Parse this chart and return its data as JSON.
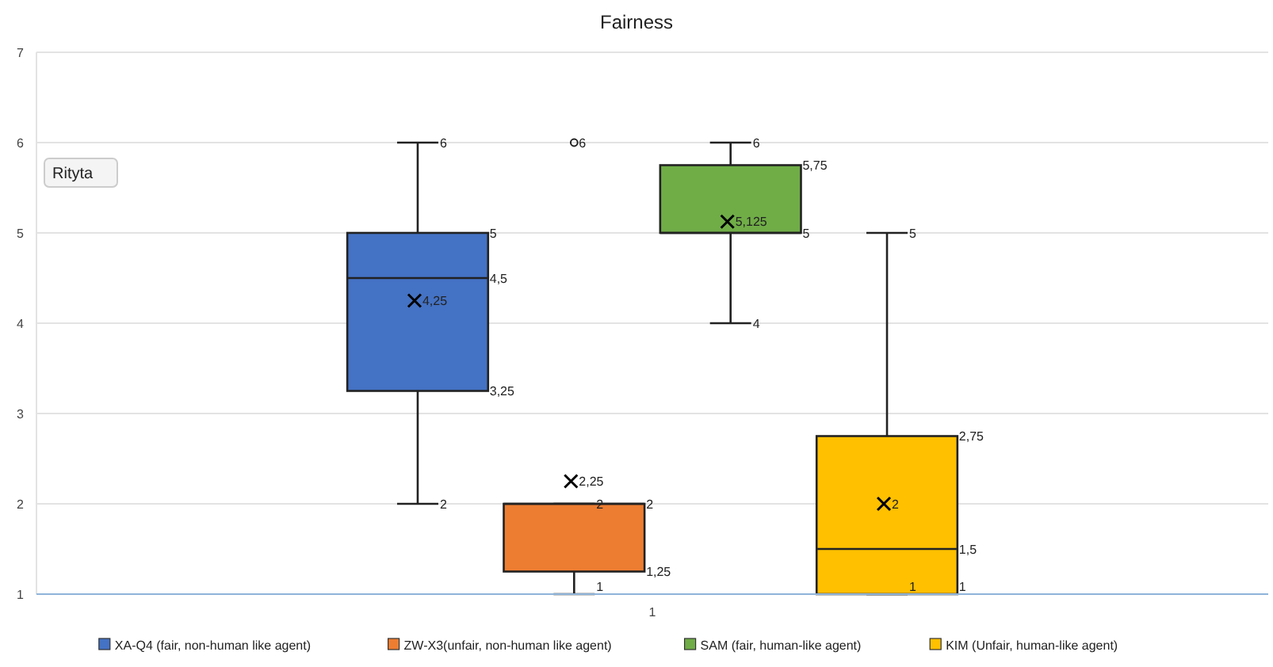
{
  "chart_data": {
    "type": "box",
    "title": "Fairness",
    "categories": [
      "1"
    ],
    "ylim": [
      1,
      7
    ],
    "yticks": [
      1,
      2,
      3,
      4,
      5,
      6,
      7
    ],
    "grid": "y",
    "legend": "bottom",
    "marker": "cross",
    "annotations": [
      "Rityta",
      "6",
      "5",
      "4,5",
      "3,25",
      "2",
      "4,25",
      "2",
      "2",
      "1,25",
      "1",
      "2,25",
      "6",
      "6",
      "5,75",
      "5",
      "4",
      "5,125",
      "5",
      "2,75",
      "1,5",
      "1",
      "1",
      "2"
    ],
    "series": [
      {
        "name": "XA-Q4 (fair, non-human like agent)",
        "color": "#4472c4",
        "boxes": [
          {
            "low": 2,
            "q1": 3.25,
            "median": 4.5,
            "q3": 5,
            "high": 6,
            "mean": 4.25
          }
        ]
      },
      {
        "name": "ZW-X3(unfair, non-human like agent)",
        "color": "#ed7d31",
        "boxes": [
          {
            "low": 1,
            "q1": 1.25,
            "median": 2,
            "q3": 2,
            "high": 2,
            "mean": 2.25,
            "outliers": [
              6
            ]
          }
        ]
      },
      {
        "name": "SAM (fair, human-like agent)",
        "color": "#70ad47",
        "boxes": [
          {
            "low": 4,
            "q1": 5,
            "median": 5,
            "q3": 5.75,
            "high": 6,
            "mean": 5.125
          }
        ]
      },
      {
        "name": "KIM (Unfair, human-like agent)",
        "color": "#ffc000",
        "boxes": [
          {
            "low": 1,
            "q1": 1,
            "median": 1.5,
            "q3": 2.75,
            "high": 5,
            "mean": 2
          }
        ]
      }
    ]
  }
}
